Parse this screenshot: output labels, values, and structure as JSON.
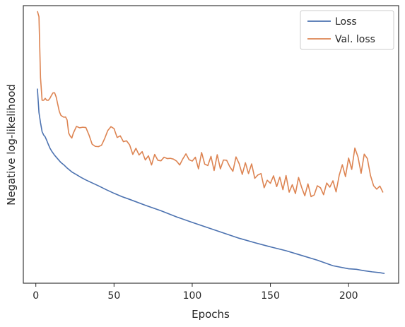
{
  "chart_data": {
    "type": "line",
    "xlabel": "Epochs",
    "ylabel": "Negative log-likelihood",
    "xlim": [
      -8,
      232
    ],
    "ylim": [
      0,
      1
    ],
    "xticks": [
      0,
      50,
      100,
      150,
      200
    ],
    "y_tick_labels": "none",
    "grid": false,
    "legend": "top-right",
    "series": [
      {
        "name": "Loss",
        "color": "#4c72b0",
        "x": [
          1,
          2,
          3,
          4,
          5,
          6,
          7,
          8,
          9,
          10,
          12,
          14,
          16,
          18,
          20,
          23,
          26,
          29,
          32,
          35,
          40,
          45,
          50,
          55,
          60,
          70,
          80,
          90,
          100,
          110,
          120,
          130,
          140,
          150,
          160,
          170,
          180,
          190,
          200,
          205,
          210,
          215,
          220,
          223
        ],
        "y": [
          0.701,
          0.615,
          0.578,
          0.546,
          0.534,
          0.527,
          0.514,
          0.5,
          0.487,
          0.477,
          0.461,
          0.448,
          0.435,
          0.426,
          0.415,
          0.401,
          0.391,
          0.381,
          0.372,
          0.364,
          0.351,
          0.337,
          0.324,
          0.312,
          0.302,
          0.281,
          0.261,
          0.239,
          0.219,
          0.2,
          0.181,
          0.162,
          0.146,
          0.131,
          0.117,
          0.1,
          0.083,
          0.063,
          0.052,
          0.05,
          0.045,
          0.041,
          0.038,
          0.035
        ]
      },
      {
        "name": "Val. loss",
        "color": "#dd8452",
        "x": [
          1,
          2,
          3,
          4,
          5,
          6,
          7,
          8,
          9,
          10,
          11,
          12,
          13,
          14,
          15,
          16,
          17,
          18,
          19,
          20,
          21,
          22,
          23,
          24,
          26,
          28,
          30,
          32,
          34,
          36,
          38,
          40,
          42,
          44,
          46,
          48,
          50,
          52,
          54,
          56,
          58,
          60,
          62,
          64,
          66,
          68,
          70,
          72,
          74,
          76,
          78,
          80,
          82,
          84,
          86,
          88,
          90,
          92,
          94,
          96,
          98,
          100,
          102,
          104,
          106,
          108,
          110,
          112,
          114,
          116,
          118,
          120,
          122,
          124,
          126,
          128,
          130,
          132,
          134,
          136,
          138,
          140,
          142,
          144,
          146,
          148,
          150,
          152,
          154,
          156,
          158,
          160,
          162,
          164,
          166,
          168,
          170,
          172,
          174,
          176,
          178,
          180,
          182,
          184,
          186,
          188,
          190,
          192,
          194,
          196,
          198,
          200,
          202,
          204,
          206,
          208,
          210,
          212,
          214,
          216,
          218,
          220,
          222
        ],
        "y": [
          0.98,
          0.96,
          0.74,
          0.659,
          0.659,
          0.666,
          0.659,
          0.659,
          0.666,
          0.677,
          0.686,
          0.686,
          0.671,
          0.645,
          0.619,
          0.605,
          0.601,
          0.598,
          0.599,
          0.588,
          0.541,
          0.53,
          0.523,
          0.541,
          0.565,
          0.56,
          0.562,
          0.561,
          0.534,
          0.501,
          0.493,
          0.492,
          0.497,
          0.521,
          0.55,
          0.564,
          0.557,
          0.525,
          0.531,
          0.51,
          0.513,
          0.498,
          0.464,
          0.486,
          0.462,
          0.474,
          0.444,
          0.459,
          0.426,
          0.464,
          0.443,
          0.441,
          0.454,
          0.449,
          0.45,
          0.447,
          0.44,
          0.426,
          0.448,
          0.466,
          0.445,
          0.44,
          0.454,
          0.412,
          0.471,
          0.429,
          0.424,
          0.457,
          0.406,
          0.463,
          0.412,
          0.444,
          0.443,
          0.42,
          0.403,
          0.455,
          0.431,
          0.392,
          0.434,
          0.395,
          0.43,
          0.378,
          0.39,
          0.395,
          0.344,
          0.371,
          0.36,
          0.387,
          0.348,
          0.382,
          0.337,
          0.388,
          0.328,
          0.355,
          0.323,
          0.381,
          0.345,
          0.315,
          0.358,
          0.312,
          0.318,
          0.351,
          0.344,
          0.319,
          0.361,
          0.346,
          0.369,
          0.329,
          0.389,
          0.427,
          0.384,
          0.451,
          0.41,
          0.487,
          0.455,
          0.396,
          0.465,
          0.449,
          0.388,
          0.351,
          0.339,
          0.35,
          0.327
        ]
      }
    ]
  }
}
